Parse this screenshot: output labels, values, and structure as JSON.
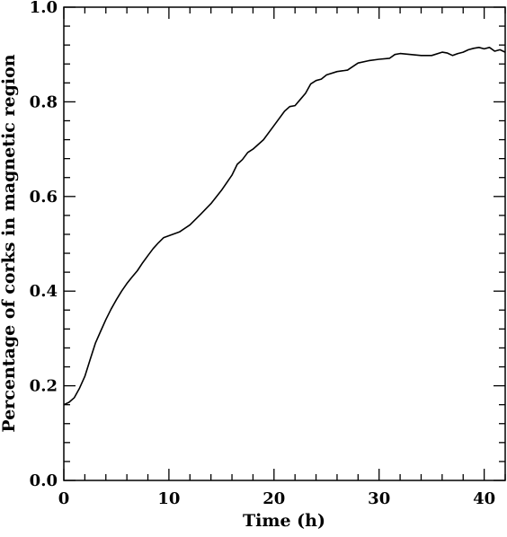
{
  "chart_data": {
    "type": "line",
    "title": "",
    "xlabel": "Time (h)",
    "ylabel": "Percentage of corks in magnetic region",
    "xlim": [
      0,
      42
    ],
    "ylim": [
      0.0,
      1.0
    ],
    "x_ticks": [
      0,
      10,
      20,
      30,
      40
    ],
    "x_tick_labels": [
      "0",
      "10",
      "20",
      "30",
      "40"
    ],
    "y_ticks": [
      0.0,
      0.2,
      0.4,
      0.6,
      0.8,
      1.0
    ],
    "y_tick_labels": [
      "0.0",
      "0.2",
      "0.4",
      "0.6",
      "0.8",
      "1.0"
    ],
    "grid": false,
    "series": [
      {
        "color": "#000000",
        "x": [
          0,
          0.5,
          1,
          1.5,
          2,
          2.5,
          3,
          3.5,
          4,
          4.5,
          5,
          5.5,
          6,
          6.5,
          7,
          7.5,
          8,
          8.5,
          9,
          9.5,
          10,
          11,
          12,
          13,
          14,
          15,
          16,
          16.5,
          17,
          17.5,
          18,
          19,
          20,
          21,
          21.5,
          22,
          22.5,
          23,
          23.5,
          24,
          24.5,
          25,
          26,
          27,
          28,
          29,
          30,
          31,
          31.5,
          32,
          33,
          34,
          35,
          36,
          36.5,
          37,
          37.5,
          38,
          38.5,
          39,
          39.5,
          40,
          40.5,
          41,
          41.5,
          42
        ],
        "y": [
          0.16,
          0.165,
          0.175,
          0.195,
          0.22,
          0.255,
          0.29,
          0.315,
          0.34,
          0.362,
          0.382,
          0.4,
          0.416,
          0.43,
          0.443,
          0.46,
          0.475,
          0.49,
          0.502,
          0.513,
          0.517,
          0.525,
          0.54,
          0.562,
          0.585,
          0.613,
          0.645,
          0.668,
          0.678,
          0.693,
          0.7,
          0.72,
          0.75,
          0.78,
          0.79,
          0.792,
          0.805,
          0.818,
          0.838,
          0.845,
          0.848,
          0.857,
          0.864,
          0.867,
          0.882,
          0.887,
          0.89,
          0.892,
          0.9,
          0.902,
          0.9,
          0.898,
          0.898,
          0.905,
          0.903,
          0.898,
          0.902,
          0.905,
          0.91,
          0.913,
          0.915,
          0.912,
          0.915,
          0.907,
          0.91,
          0.905
        ]
      }
    ]
  }
}
